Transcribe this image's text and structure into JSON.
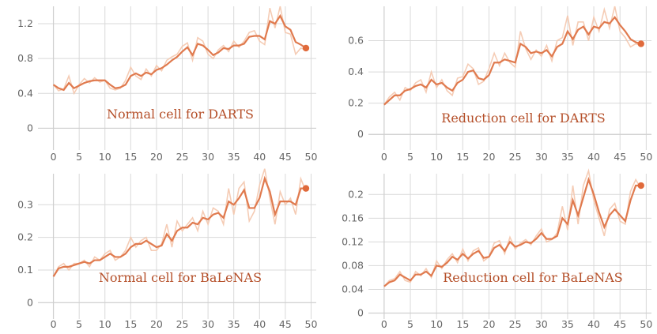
{
  "chart_data": [
    {
      "type": "line",
      "caption": "Normal cell for DARTS",
      "colors": {
        "smooth": "#e07a4e",
        "raw": "#f4c7ad",
        "caption": "#b5502a"
      },
      "xticks": [
        0,
        5,
        10,
        15,
        20,
        25,
        30,
        35,
        40,
        45,
        50
      ],
      "yticks": [
        0,
        0.4,
        0.8,
        1.2
      ],
      "ytick_labels": [
        "0",
        "0.4",
        "0.8",
        "1.2"
      ],
      "xlim": [
        -3,
        51
      ],
      "ylim": [
        -0.25,
        1.4
      ],
      "x": [
        0,
        1,
        2,
        3,
        4,
        5,
        6,
        7,
        8,
        9,
        10,
        11,
        12,
        13,
        14,
        15,
        16,
        17,
        18,
        19,
        20,
        21,
        22,
        23,
        24,
        25,
        26,
        27,
        28,
        29,
        30,
        31,
        32,
        33,
        34,
        35,
        36,
        37,
        38,
        39,
        40,
        41,
        42,
        43,
        44,
        45,
        46,
        47,
        48,
        49
      ],
      "series": [
        {
          "role": "smoothed",
          "values": [
            0.5,
            0.46,
            0.44,
            0.52,
            0.46,
            0.49,
            0.52,
            0.54,
            0.55,
            0.55,
            0.55,
            0.5,
            0.46,
            0.47,
            0.5,
            0.6,
            0.63,
            0.6,
            0.64,
            0.62,
            0.67,
            0.69,
            0.73,
            0.78,
            0.82,
            0.88,
            0.93,
            0.84,
            0.97,
            0.95,
            0.9,
            0.84,
            0.87,
            0.92,
            0.91,
            0.95,
            0.95,
            0.97,
            1.05,
            1.06,
            1.06,
            1.02,
            1.23,
            1.2,
            1.29,
            1.17,
            1.13,
            0.99,
            0.96,
            0.92
          ]
        },
        {
          "role": "raw",
          "values": [
            0.5,
            0.43,
            0.45,
            0.6,
            0.4,
            0.5,
            0.57,
            0.52,
            0.58,
            0.53,
            0.55,
            0.46,
            0.44,
            0.46,
            0.55,
            0.7,
            0.6,
            0.56,
            0.68,
            0.6,
            0.72,
            0.66,
            0.78,
            0.82,
            0.85,
            0.94,
            0.98,
            0.78,
            1.04,
            1.0,
            0.85,
            0.8,
            0.9,
            0.95,
            0.88,
            1.0,
            0.93,
            1.0,
            1.1,
            1.12,
            1.0,
            0.96,
            1.38,
            1.15,
            1.4,
            1.1,
            1.08,
            0.85,
            0.92,
            0.9
          ]
        }
      ]
    },
    {
      "type": "line",
      "caption": "Reduction cell for DARTS",
      "colors": {
        "smooth": "#e07a4e",
        "raw": "#f4c7ad",
        "caption": "#b5502a"
      },
      "xticks": [
        0,
        5,
        10,
        15,
        20,
        25,
        30,
        35,
        40,
        45,
        50
      ],
      "yticks": [
        0,
        0.2,
        0.4,
        0.6
      ],
      "ytick_labels": [
        "0",
        "0.2",
        "0.4",
        "0.6"
      ],
      "xlim": [
        -3,
        51
      ],
      "ylim": [
        -0.1,
        0.82
      ],
      "x": [
        0,
        1,
        2,
        3,
        4,
        5,
        6,
        7,
        8,
        9,
        10,
        11,
        12,
        13,
        14,
        15,
        16,
        17,
        18,
        19,
        20,
        21,
        22,
        23,
        24,
        25,
        26,
        27,
        28,
        29,
        30,
        31,
        32,
        33,
        34,
        35,
        36,
        37,
        38,
        39,
        40,
        41,
        42,
        43,
        44,
        45,
        46,
        47,
        48,
        49
      ],
      "series": [
        {
          "role": "smoothed",
          "values": [
            0.19,
            0.22,
            0.25,
            0.25,
            0.28,
            0.29,
            0.31,
            0.32,
            0.3,
            0.35,
            0.32,
            0.33,
            0.3,
            0.28,
            0.33,
            0.35,
            0.4,
            0.41,
            0.36,
            0.35,
            0.38,
            0.46,
            0.46,
            0.48,
            0.47,
            0.46,
            0.58,
            0.56,
            0.52,
            0.53,
            0.52,
            0.54,
            0.5,
            0.56,
            0.58,
            0.66,
            0.61,
            0.67,
            0.69,
            0.64,
            0.69,
            0.68,
            0.72,
            0.71,
            0.75,
            0.7,
            0.66,
            0.61,
            0.59,
            0.58
          ]
        },
        {
          "role": "raw",
          "values": [
            0.19,
            0.24,
            0.27,
            0.22,
            0.3,
            0.28,
            0.33,
            0.35,
            0.27,
            0.4,
            0.3,
            0.35,
            0.28,
            0.25,
            0.36,
            0.37,
            0.45,
            0.42,
            0.32,
            0.34,
            0.42,
            0.52,
            0.44,
            0.52,
            0.46,
            0.43,
            0.66,
            0.55,
            0.48,
            0.54,
            0.5,
            0.57,
            0.47,
            0.6,
            0.62,
            0.76,
            0.57,
            0.72,
            0.72,
            0.6,
            0.75,
            0.66,
            0.8,
            0.68,
            0.82,
            0.66,
            0.62,
            0.56,
            0.58,
            0.57
          ]
        }
      ]
    },
    {
      "type": "line",
      "caption": "Normal cell for BaLeNAS",
      "colors": {
        "smooth": "#e07a4e",
        "raw": "#f4c7ad",
        "caption": "#b5502a"
      },
      "xticks": [
        0,
        5,
        10,
        15,
        20,
        25,
        30,
        35,
        40,
        45,
        50
      ],
      "yticks": [
        0,
        0.1,
        0.2,
        0.3
      ],
      "ytick_labels": [
        "0",
        "0.1",
        "0.2",
        "0.3"
      ],
      "xlim": [
        -3,
        51
      ],
      "ylim": [
        -0.05,
        0.395
      ],
      "x": [
        0,
        1,
        2,
        3,
        4,
        5,
        6,
        7,
        8,
        9,
        10,
        11,
        12,
        13,
        14,
        15,
        16,
        17,
        18,
        19,
        20,
        21,
        22,
        23,
        24,
        25,
        26,
        27,
        28,
        29,
        30,
        31,
        32,
        33,
        34,
        35,
        36,
        37,
        38,
        39,
        40,
        41,
        42,
        43,
        44,
        45,
        46,
        47,
        48,
        49
      ],
      "series": [
        {
          "role": "smoothed",
          "values": [
            0.08,
            0.105,
            0.11,
            0.11,
            0.115,
            0.12,
            0.125,
            0.12,
            0.13,
            0.13,
            0.14,
            0.15,
            0.14,
            0.14,
            0.15,
            0.17,
            0.18,
            0.18,
            0.19,
            0.18,
            0.17,
            0.175,
            0.21,
            0.19,
            0.22,
            0.23,
            0.23,
            0.245,
            0.24,
            0.26,
            0.255,
            0.27,
            0.275,
            0.26,
            0.31,
            0.3,
            0.32,
            0.345,
            0.29,
            0.29,
            0.32,
            0.38,
            0.34,
            0.27,
            0.31,
            0.31,
            0.31,
            0.3,
            0.35,
            0.35
          ]
        },
        {
          "role": "raw",
          "values": [
            0.08,
            0.11,
            0.12,
            0.1,
            0.12,
            0.12,
            0.13,
            0.11,
            0.14,
            0.13,
            0.15,
            0.16,
            0.13,
            0.14,
            0.16,
            0.2,
            0.17,
            0.19,
            0.2,
            0.16,
            0.16,
            0.18,
            0.24,
            0.17,
            0.25,
            0.22,
            0.24,
            0.26,
            0.22,
            0.28,
            0.24,
            0.29,
            0.28,
            0.24,
            0.35,
            0.27,
            0.35,
            0.37,
            0.25,
            0.28,
            0.36,
            0.41,
            0.32,
            0.24,
            0.34,
            0.3,
            0.32,
            0.27,
            0.38,
            0.34
          ]
        }
      ]
    },
    {
      "type": "line",
      "caption": "Reduction cell for BaLeNAS",
      "colors": {
        "smooth": "#e07a4e",
        "raw": "#f4c7ad",
        "caption": "#b5502a"
      },
      "xticks": [
        0,
        5,
        10,
        15,
        20,
        25,
        30,
        35,
        40,
        45,
        50
      ],
      "yticks": [
        0,
        0.04,
        0.08,
        0.12,
        0.16,
        0.2
      ],
      "ytick_labels": [
        "0",
        "0.04",
        "0.08",
        "0.12",
        "0.16",
        "0.2"
      ],
      "xlim": [
        -3,
        51
      ],
      "ylim": [
        -0.01,
        0.235
      ],
      "x": [
        0,
        1,
        2,
        3,
        4,
        5,
        6,
        7,
        8,
        9,
        10,
        11,
        12,
        13,
        14,
        15,
        16,
        17,
        18,
        19,
        20,
        21,
        22,
        23,
        24,
        25,
        26,
        27,
        28,
        29,
        30,
        31,
        32,
        33,
        34,
        35,
        36,
        37,
        38,
        39,
        40,
        41,
        42,
        43,
        44,
        45,
        46,
        47,
        48,
        49
      ],
      "series": [
        {
          "role": "smoothed",
          "values": [
            0.045,
            0.052,
            0.055,
            0.065,
            0.06,
            0.055,
            0.065,
            0.065,
            0.07,
            0.063,
            0.08,
            0.078,
            0.085,
            0.095,
            0.09,
            0.1,
            0.092,
            0.1,
            0.105,
            0.093,
            0.095,
            0.11,
            0.115,
            0.105,
            0.12,
            0.112,
            0.115,
            0.12,
            0.118,
            0.125,
            0.135,
            0.125,
            0.125,
            0.13,
            0.16,
            0.15,
            0.19,
            0.165,
            0.195,
            0.225,
            0.2,
            0.17,
            0.145,
            0.165,
            0.175,
            0.165,
            0.155,
            0.19,
            0.215,
            0.215
          ]
        },
        {
          "role": "raw",
          "values": [
            0.045,
            0.055,
            0.058,
            0.07,
            0.055,
            0.052,
            0.07,
            0.063,
            0.075,
            0.06,
            0.088,
            0.075,
            0.09,
            0.1,
            0.085,
            0.108,
            0.088,
            0.105,
            0.11,
            0.088,
            0.095,
            0.118,
            0.122,
            0.1,
            0.128,
            0.108,
            0.118,
            0.124,
            0.115,
            0.13,
            0.142,
            0.12,
            0.124,
            0.135,
            0.18,
            0.14,
            0.215,
            0.15,
            0.215,
            0.24,
            0.19,
            0.16,
            0.13,
            0.175,
            0.185,
            0.155,
            0.15,
            0.205,
            0.225,
            0.21
          ]
        }
      ]
    }
  ]
}
